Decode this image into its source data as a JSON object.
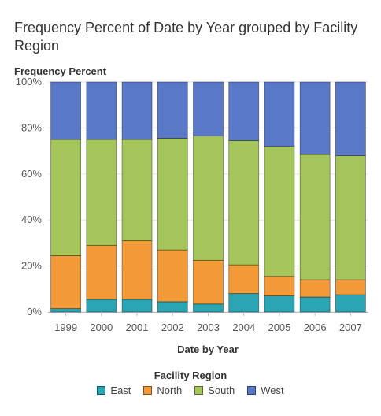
{
  "title": "Frequency Percent of Date by Year grouped by Facility Region",
  "chart_data": {
    "type": "bar",
    "stacked": true,
    "title": "Frequency Percent of Date by Year grouped by Facility Region",
    "xlabel": "Date by Year",
    "ylabel": "Frequency Percent",
    "ylim": [
      0,
      100
    ],
    "ytick_labels": [
      "0%",
      "20%",
      "40%",
      "60%",
      "80%",
      "100%"
    ],
    "categories": [
      "1999",
      "2000",
      "2001",
      "2002",
      "2003",
      "2004",
      "2005",
      "2006",
      "2007"
    ],
    "series": [
      {
        "name": "East",
        "color": "#2aa5b4",
        "values": [
          1.5,
          5.5,
          5.5,
          4.5,
          3.5,
          8,
          7,
          6.5,
          7.5
        ]
      },
      {
        "name": "North",
        "color": "#f29a38",
        "values": [
          23,
          23.5,
          25.5,
          22.5,
          19,
          12.5,
          8.5,
          7.5,
          6.5
        ]
      },
      {
        "name": "South",
        "color": "#a4c55a",
        "values": [
          50.5,
          46,
          44,
          48.5,
          54,
          54,
          56.5,
          54.5,
          54
        ]
      },
      {
        "name": "West",
        "color": "#5a78c8",
        "values": [
          25,
          25,
          25,
          24.5,
          23.5,
          25.5,
          28,
          31.5,
          32
        ]
      }
    ],
    "legend_title": "Facility Region",
    "legend_position": "bottom",
    "grid": true
  }
}
